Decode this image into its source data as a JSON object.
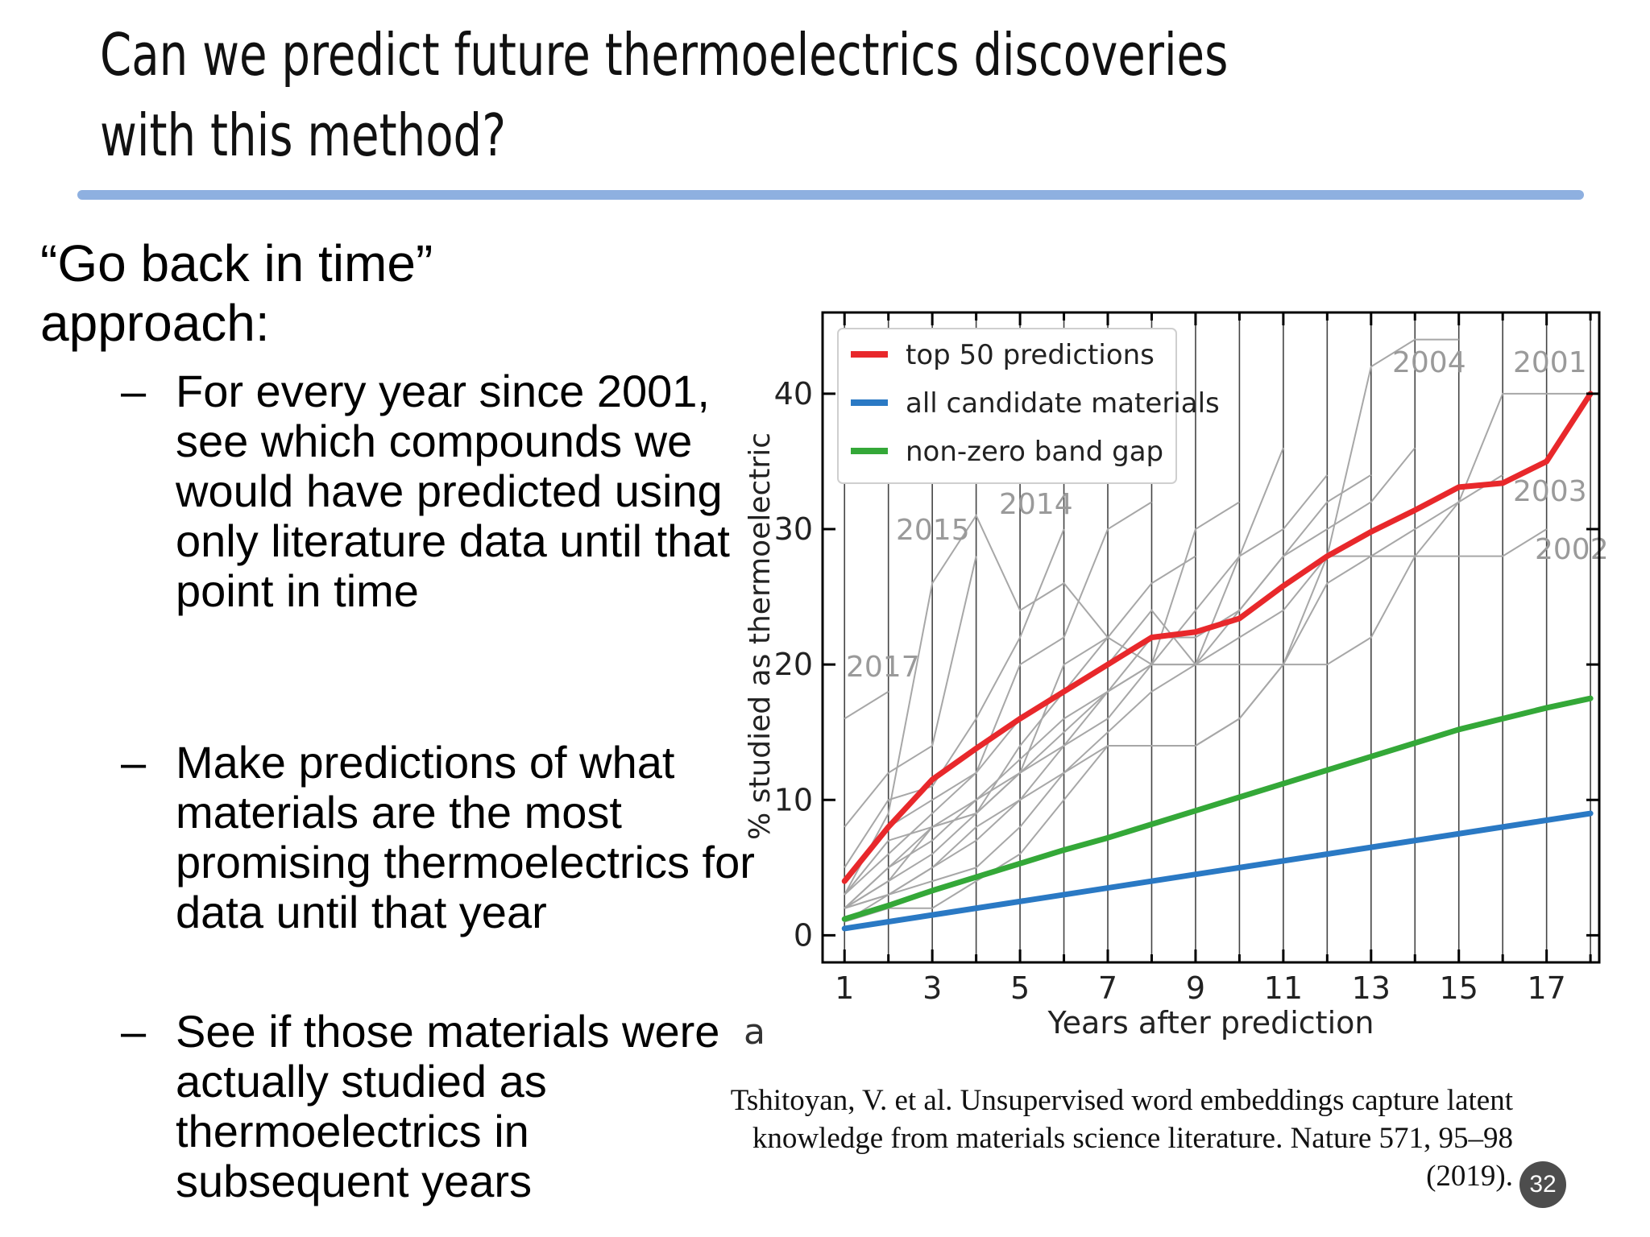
{
  "slide": {
    "title": "Can we predict future thermoelectrics discoveries with this method?",
    "intro_line1": "“Go back in time”",
    "intro_line2": "approach:",
    "bullets": [
      {
        "dash": "–",
        "text": "For every year since 2001, see which compounds we would have predicted using only literature data until that point in time"
      },
      {
        "dash": "–",
        "text": "Make predictions of what materials are the most promising thermoelectrics for data until that year"
      },
      {
        "dash": "–",
        "text": "See if those materials were actually studied as thermoelectrics in subsequent years"
      }
    ],
    "citation": "Tshitoyan, V. et al. Unsupervised word embeddings capture latent knowledge from materials science literature. Nature 571, 95–98 (2019).",
    "page_number": "32",
    "rule_color": "#8eb0e0"
  },
  "chart_data": {
    "type": "line",
    "panel_label": "a",
    "xlabel": "Years after prediction",
    "ylabel": "% studied as thermoelectric",
    "xlim": [
      0.5,
      18.2
    ],
    "ylim": [
      -2,
      46
    ],
    "xticks": [
      1,
      3,
      5,
      7,
      9,
      11,
      13,
      15,
      17
    ],
    "yticks": [
      0,
      10,
      20,
      30,
      40
    ],
    "grid": "vertical lines at each year",
    "legend": "top-left",
    "series": [
      {
        "name": "top 50 predictions",
        "color": "#e8282b",
        "x": [
          1,
          2,
          3,
          4,
          5,
          6,
          7,
          8,
          9,
          10,
          11,
          12,
          13,
          14,
          15,
          16,
          17,
          18
        ],
        "y": [
          4,
          8,
          11.5,
          13.8,
          16,
          18,
          20,
          22,
          22.4,
          23.4,
          25.8,
          28,
          29.8,
          31.4,
          33.1,
          33.4,
          35,
          40
        ]
      },
      {
        "name": "all candidate materials",
        "color": "#2a79c4",
        "x": [
          1,
          18
        ],
        "y": [
          0.5,
          9
        ]
      },
      {
        "name": "non-zero band gap",
        "color": "#34a838",
        "x": [
          1,
          2,
          3,
          4,
          5,
          6,
          7,
          8,
          9,
          10,
          11,
          12,
          13,
          14,
          15,
          16,
          17,
          18
        ],
        "y": [
          1.2,
          2.2,
          3.3,
          4.3,
          5.3,
          6.3,
          7.2,
          8.2,
          9.2,
          10.2,
          11.2,
          12.2,
          13.2,
          14.2,
          15.2,
          16,
          16.8,
          17.5
        ]
      }
    ],
    "year_curves": [
      {
        "label": "2017",
        "x": [
          1,
          2
        ],
        "y": [
          16,
          18
        ]
      },
      {
        "label": "2015",
        "x": [
          1,
          2,
          3,
          4
        ],
        "y": [
          8,
          12,
          14,
          28
        ]
      },
      {
        "label": "2014",
        "x": [
          1,
          2,
          3,
          4,
          5,
          6
        ],
        "y": [
          5,
          10,
          11,
          16,
          22,
          30
        ]
      },
      {
        "label": "",
        "x": [
          1,
          2,
          3,
          4,
          5,
          6,
          7
        ],
        "y": [
          3,
          9,
          26,
          31,
          24,
          26,
          22
        ]
      },
      {
        "label": "",
        "x": [
          1,
          2,
          3,
          4,
          5,
          6,
          7,
          8
        ],
        "y": [
          4,
          8,
          10,
          12,
          20,
          22,
          30,
          32
        ]
      },
      {
        "label": "",
        "x": [
          1,
          2,
          3,
          4,
          5,
          6,
          7,
          8,
          9
        ],
        "y": [
          3,
          7,
          8,
          10,
          12,
          20,
          22,
          26,
          28
        ]
      },
      {
        "label": "",
        "x": [
          1,
          2,
          3,
          4,
          5,
          6,
          7,
          8,
          9,
          10
        ],
        "y": [
          2,
          5,
          8,
          9,
          14,
          18,
          22,
          20,
          30,
          32
        ]
      },
      {
        "label": "",
        "x": [
          1,
          2,
          3,
          4,
          5,
          6,
          7,
          8,
          9,
          10,
          11
        ],
        "y": [
          3,
          6,
          9,
          12,
          16,
          18,
          20,
          24,
          20,
          28,
          36
        ]
      },
      {
        "label": "",
        "x": [
          1,
          2,
          3,
          4,
          5,
          6,
          7,
          8,
          9,
          10,
          11,
          12
        ],
        "y": [
          2,
          5,
          7,
          10,
          13,
          16,
          18,
          20,
          24,
          28,
          30,
          34
        ]
      },
      {
        "label": "",
        "x": [
          1,
          2,
          3,
          4,
          5,
          6,
          7,
          8,
          9,
          10,
          11,
          12,
          13
        ],
        "y": [
          2,
          4,
          6,
          9,
          12,
          14,
          18,
          22,
          22,
          24,
          28,
          32,
          34
        ]
      },
      {
        "label": "",
        "x": [
          1,
          2,
          3,
          4,
          5,
          6,
          7,
          8,
          9,
          10,
          11,
          12,
          13,
          14
        ],
        "y": [
          2,
          4,
          8,
          9,
          12,
          15,
          18,
          20,
          20,
          24,
          28,
          30,
          32,
          36
        ]
      },
      {
        "label": "2004",
        "x": [
          1,
          2,
          3,
          4,
          5,
          6,
          7,
          8,
          9,
          10,
          11,
          12,
          13,
          14,
          15
        ],
        "y": [
          1,
          3,
          5,
          8,
          10,
          14,
          16,
          20,
          20,
          22,
          24,
          28,
          42,
          44,
          44
        ]
      },
      {
        "label": "2003",
        "x": [
          1,
          2,
          3,
          4,
          5,
          6,
          7,
          8,
          9,
          10,
          11,
          12,
          13,
          14,
          15,
          16
        ],
        "y": [
          2,
          3,
          5,
          7,
          10,
          12,
          15,
          18,
          20,
          20,
          20,
          26,
          28,
          30,
          32,
          34
        ]
      },
      {
        "label": "2002",
        "x": [
          1,
          2,
          3,
          4,
          5,
          6,
          7,
          8,
          9,
          10,
          11,
          12,
          13,
          14,
          15,
          16,
          17
        ],
        "y": [
          2,
          3,
          4,
          5,
          8,
          12,
          14,
          14,
          14,
          16,
          20,
          28,
          28,
          28,
          28,
          28,
          30
        ]
      },
      {
        "label": "2001",
        "x": [
          1,
          2,
          3,
          4,
          5,
          6,
          7,
          8,
          9,
          10,
          11,
          12,
          13,
          14,
          15,
          16,
          17,
          18
        ],
        "y": [
          1,
          2,
          2,
          4,
          6,
          10,
          14,
          14,
          14,
          16,
          20,
          20,
          22,
          28,
          32,
          40,
          40,
          40
        ]
      }
    ]
  }
}
